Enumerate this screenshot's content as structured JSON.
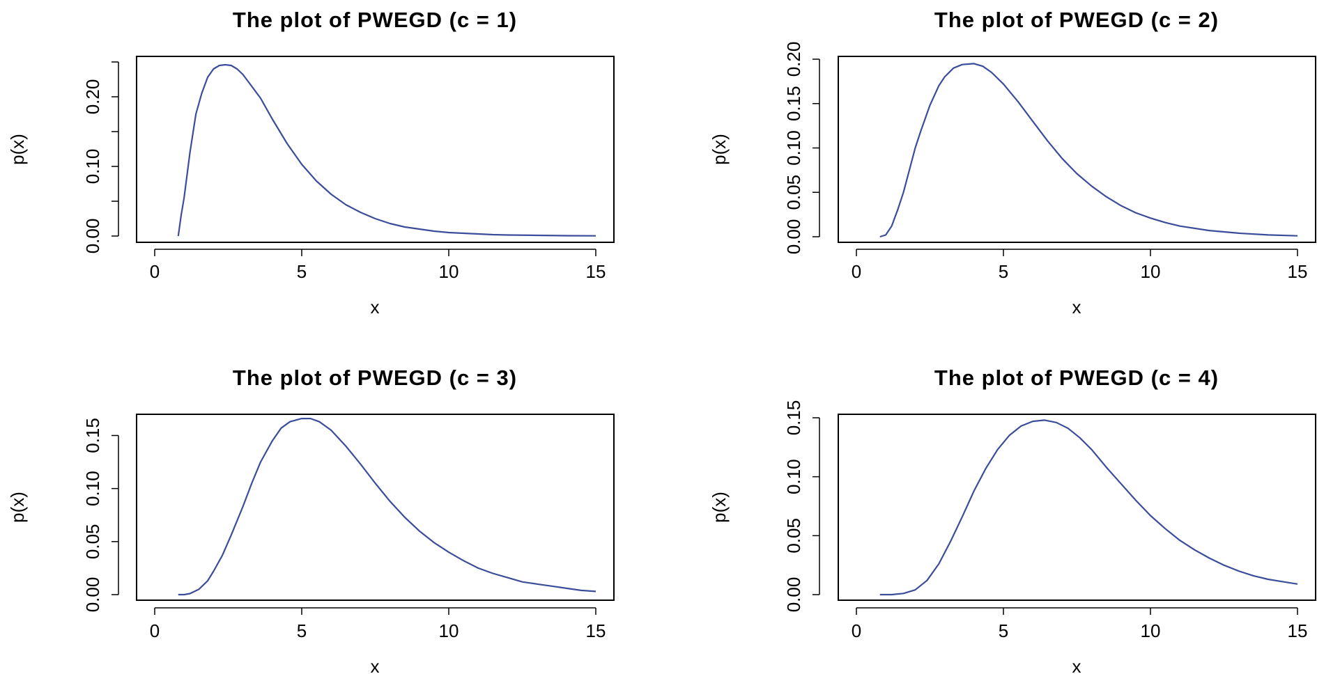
{
  "chart_data": [
    {
      "type": "line",
      "title": "The plot of PWEGD (c = 1)",
      "xlabel": "x",
      "ylabel": "p(x)",
      "xlim": [
        0,
        15
      ],
      "ylim": [
        0,
        0.25
      ],
      "xticks": [
        "0",
        "5",
        "10",
        "15"
      ],
      "yticks": [
        "0.00",
        "0.10",
        "0.20"
      ],
      "ytick_values": [
        0,
        0.05,
        0.1,
        0.15,
        0.2,
        0.25
      ],
      "ytick_labels": [
        "0.00",
        "",
        "0.10",
        "",
        "0.20",
        ""
      ],
      "grid": false,
      "color": "#3b4d9a",
      "x": [
        0.8,
        0.9,
        1.0,
        1.2,
        1.4,
        1.6,
        1.8,
        2.0,
        2.2,
        2.4,
        2.6,
        2.8,
        3.0,
        3.3,
        3.6,
        4.0,
        4.5,
        5.0,
        5.5,
        6.0,
        6.5,
        7.0,
        7.5,
        8.0,
        8.5,
        9.0,
        9.5,
        10.0,
        10.5,
        11.0,
        11.5,
        12.0,
        13.0,
        14.0,
        15.0
      ],
      "y": [
        0.0,
        0.03,
        0.055,
        0.12,
        0.175,
        0.205,
        0.228,
        0.24,
        0.245,
        0.246,
        0.245,
        0.24,
        0.232,
        0.215,
        0.198,
        0.168,
        0.133,
        0.103,
        0.079,
        0.06,
        0.045,
        0.034,
        0.025,
        0.018,
        0.013,
        0.01,
        0.007,
        0.005,
        0.004,
        0.003,
        0.002,
        0.0015,
        0.001,
        0.0005,
        0.0003
      ]
    },
    {
      "type": "line",
      "title": "The plot of PWEGD (c = 2)",
      "xlabel": "x",
      "ylabel": "p(x)",
      "xlim": [
        0,
        15
      ],
      "ylim": [
        0,
        0.2
      ],
      "xticks": [
        "0",
        "5",
        "10",
        "15"
      ],
      "yticks": [
        "0.00",
        "0.05",
        "0.10",
        "0.15",
        "0.20"
      ],
      "ytick_values": [
        0,
        0.05,
        0.1,
        0.15,
        0.2
      ],
      "ytick_labels": [
        "0.00",
        "0.05",
        "0.10",
        "0.15",
        "0.20"
      ],
      "grid": false,
      "color": "#3b4d9a",
      "x": [
        0.8,
        1.0,
        1.2,
        1.4,
        1.6,
        1.8,
        2.0,
        2.2,
        2.5,
        2.8,
        3.0,
        3.3,
        3.6,
        4.0,
        4.3,
        4.6,
        5.0,
        5.5,
        6.0,
        6.5,
        7.0,
        7.5,
        8.0,
        8.5,
        9.0,
        9.5,
        10.0,
        10.5,
        11.0,
        12.0,
        13.0,
        14.0,
        15.0
      ],
      "y": [
        0.0,
        0.002,
        0.012,
        0.03,
        0.05,
        0.075,
        0.1,
        0.12,
        0.148,
        0.17,
        0.18,
        0.19,
        0.194,
        0.195,
        0.192,
        0.185,
        0.172,
        0.152,
        0.13,
        0.108,
        0.088,
        0.071,
        0.057,
        0.045,
        0.035,
        0.027,
        0.021,
        0.016,
        0.012,
        0.007,
        0.004,
        0.002,
        0.001
      ]
    },
    {
      "type": "line",
      "title": "The plot of PWEGD (c = 3)",
      "xlabel": "x",
      "ylabel": "p(x)",
      "xlim": [
        0,
        15
      ],
      "ylim": [
        0,
        0.17
      ],
      "xticks": [
        "0",
        "5",
        "10",
        "15"
      ],
      "yticks": [
        "0.00",
        "0.05",
        "0.10",
        "0.15"
      ],
      "ytick_values": [
        0,
        0.05,
        0.1,
        0.15
      ],
      "ytick_labels": [
        "0.00",
        "0.05",
        "0.10",
        "0.15"
      ],
      "grid": false,
      "color": "#3b4d9a",
      "x": [
        0.8,
        1.0,
        1.2,
        1.5,
        1.8,
        2.0,
        2.3,
        2.6,
        3.0,
        3.3,
        3.6,
        4.0,
        4.3,
        4.6,
        5.0,
        5.3,
        5.6,
        6.0,
        6.5,
        7.0,
        7.5,
        8.0,
        8.5,
        9.0,
        9.5,
        10.0,
        10.5,
        11.0,
        11.5,
        12.0,
        12.5,
        13.0,
        13.5,
        14.0,
        14.5,
        15.0
      ],
      "y": [
        0.0,
        0.0,
        0.001,
        0.005,
        0.013,
        0.022,
        0.037,
        0.056,
        0.083,
        0.105,
        0.125,
        0.145,
        0.157,
        0.163,
        0.166,
        0.166,
        0.163,
        0.155,
        0.14,
        0.123,
        0.105,
        0.088,
        0.073,
        0.06,
        0.049,
        0.04,
        0.032,
        0.025,
        0.02,
        0.016,
        0.012,
        0.01,
        0.008,
        0.006,
        0.004,
        0.003
      ]
    },
    {
      "type": "line",
      "title": "The plot of PWEGD (c = 4)",
      "xlabel": "x",
      "ylabel": "p(x)",
      "xlim": [
        0,
        15
      ],
      "ylim": [
        0,
        0.15
      ],
      "xticks": [
        "0",
        "5",
        "10",
        "15"
      ],
      "yticks": [
        "0.00",
        "0.05",
        "0.10",
        "0.15"
      ],
      "ytick_values": [
        0,
        0.05,
        0.1,
        0.15
      ],
      "ytick_labels": [
        "0.00",
        "0.05",
        "0.10",
        "0.15"
      ],
      "grid": false,
      "color": "#3b4d9a",
      "x": [
        0.8,
        1.2,
        1.6,
        2.0,
        2.4,
        2.8,
        3.2,
        3.6,
        4.0,
        4.4,
        4.8,
        5.2,
        5.6,
        6.0,
        6.4,
        6.8,
        7.2,
        7.6,
        8.0,
        8.5,
        9.0,
        9.5,
        10.0,
        10.5,
        11.0,
        11.5,
        12.0,
        12.5,
        13.0,
        13.5,
        14.0,
        14.5,
        15.0
      ],
      "y": [
        0.0,
        0.0,
        0.001,
        0.004,
        0.012,
        0.026,
        0.045,
        0.066,
        0.088,
        0.107,
        0.123,
        0.135,
        0.143,
        0.147,
        0.148,
        0.146,
        0.141,
        0.133,
        0.123,
        0.108,
        0.094,
        0.08,
        0.067,
        0.056,
        0.046,
        0.038,
        0.031,
        0.025,
        0.02,
        0.016,
        0.013,
        0.011,
        0.009
      ]
    }
  ]
}
